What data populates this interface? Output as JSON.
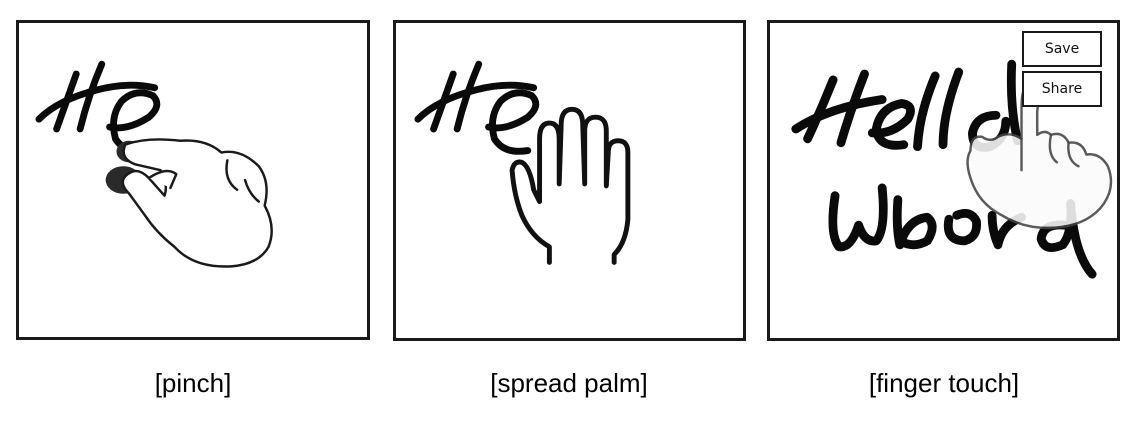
{
  "figure": {
    "panels": [
      {
        "caption": "[pinch]",
        "gesture": "pinch",
        "handwriting": "He"
      },
      {
        "caption": "[spread palm]",
        "gesture": "spread-palm",
        "handwriting": "He"
      },
      {
        "caption": "[finger touch]",
        "gesture": "finger-touch",
        "handwriting": "Hello World",
        "menu": {
          "save_label": "Save",
          "share_label": "Share"
        }
      }
    ]
  }
}
